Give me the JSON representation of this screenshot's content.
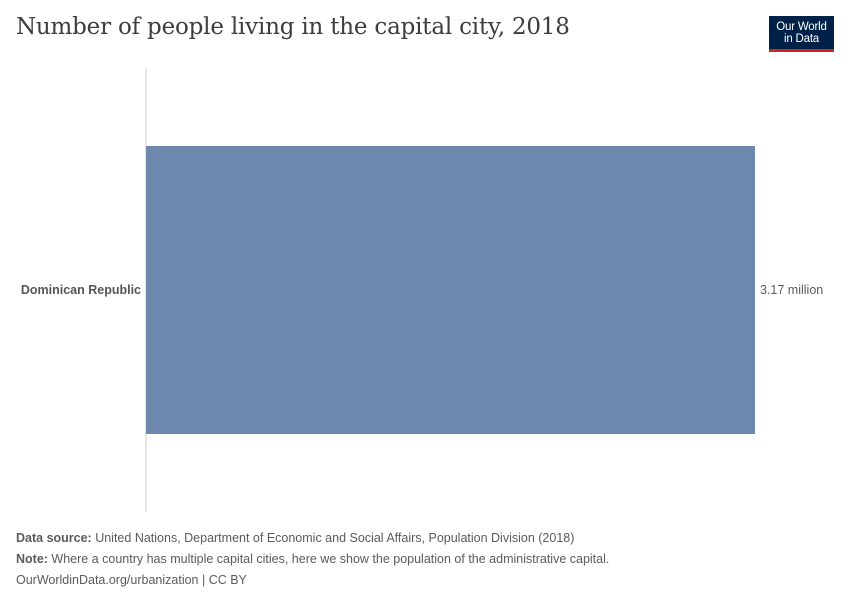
{
  "title": "Number of people living in the capital city, 2018",
  "logo": {
    "line1": "Our World",
    "line2": "in Data"
  },
  "colors": {
    "bar": "#6f88ae",
    "axis": "#cccccc",
    "logo_bg": "#002147",
    "logo_accent": "#ce261e"
  },
  "chart_data": {
    "type": "bar",
    "orientation": "horizontal",
    "categories": [
      "Dominican Republic"
    ],
    "values": [
      3170000
    ],
    "value_labels": [
      "3.17 million"
    ],
    "xlim": [
      0,
      3170000
    ],
    "grid": false
  },
  "footer": {
    "source_label": "Data source:",
    "source_text": " United Nations, Department of Economic and Social Affairs, Population Division (2018)",
    "note_label": "Note:",
    "note_text": " Where a country has multiple capital cities, here we show the population of the administrative capital.",
    "credit": "OurWorldinData.org/urbanization | CC BY"
  }
}
